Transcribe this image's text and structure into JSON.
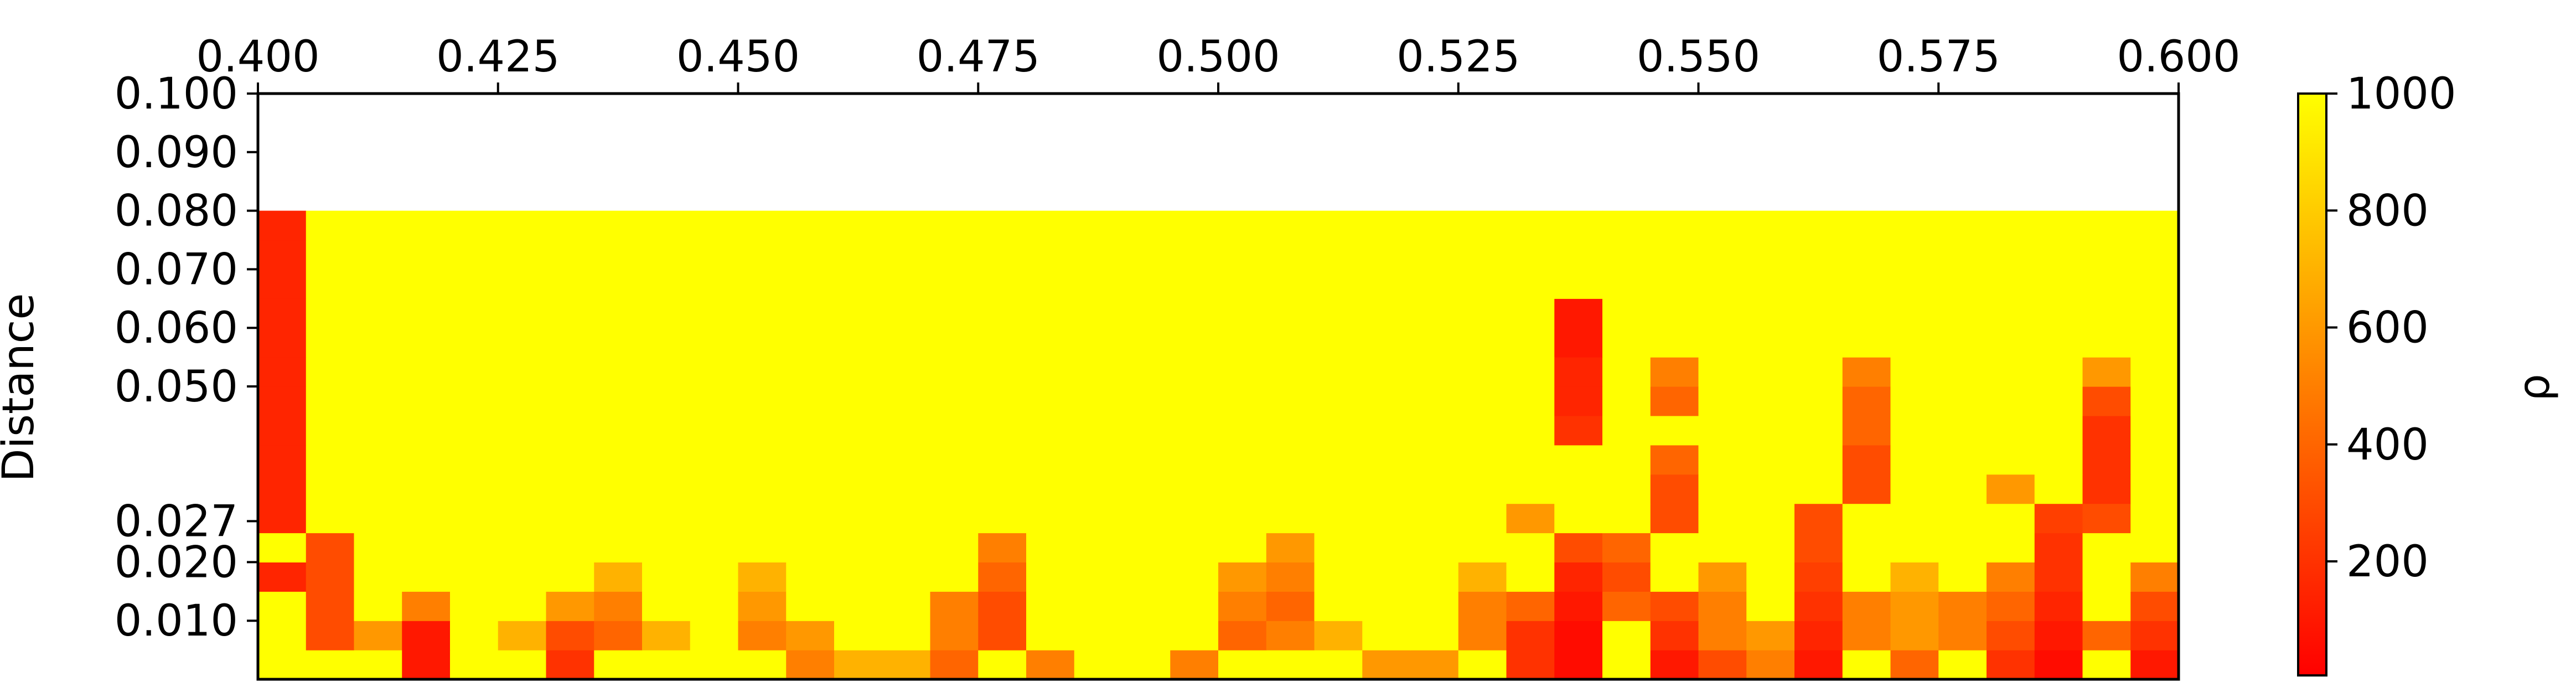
{
  "chart_data": {
    "type": "heatmap",
    "y_label": "Distance",
    "colorbar_label": "ρ",
    "colormap": "autumn",
    "xlim": [
      0.4,
      0.6
    ],
    "ylim": [
      0.0,
      0.1
    ],
    "zlim": [
      5,
      1000
    ],
    "xticks": [
      {
        "value": 0.4,
        "label": "0.400"
      },
      {
        "value": 0.425,
        "label": "0.425"
      },
      {
        "value": 0.45,
        "label": "0.450"
      },
      {
        "value": 0.475,
        "label": "0.475"
      },
      {
        "value": 0.5,
        "label": "0.500"
      },
      {
        "value": 0.525,
        "label": "0.525"
      },
      {
        "value": 0.55,
        "label": "0.550"
      },
      {
        "value": 0.575,
        "label": "0.575"
      },
      {
        "value": 0.6,
        "label": "0.600"
      }
    ],
    "yticks": [
      {
        "value": 0.1,
        "label": "0.100"
      },
      {
        "value": 0.09,
        "label": "0.090"
      },
      {
        "value": 0.08,
        "label": "0.080"
      },
      {
        "value": 0.07,
        "label": "0.070"
      },
      {
        "value": 0.06,
        "label": "0.060"
      },
      {
        "value": 0.05,
        "label": "0.050"
      },
      {
        "value": 0.027,
        "label": "0.027"
      },
      {
        "value": 0.02,
        "label": "0.020"
      },
      {
        "value": 0.01,
        "label": "0.010"
      }
    ],
    "zticks": [
      200,
      400,
      600,
      800,
      1000
    ],
    "xbins": [
      0.4,
      0.405,
      0.41,
      0.415,
      0.42,
      0.425,
      0.43,
      0.435,
      0.44,
      0.445,
      0.45,
      0.455,
      0.46,
      0.465,
      0.47,
      0.475,
      0.48,
      0.485,
      0.49,
      0.495,
      0.5,
      0.505,
      0.51,
      0.515,
      0.52,
      0.525,
      0.53,
      0.535,
      0.54,
      0.545,
      0.55,
      0.555,
      0.56,
      0.565,
      0.57,
      0.575,
      0.58,
      0.585,
      0.59,
      0.595,
      0.6
    ],
    "ybins": [
      0.0,
      0.005,
      0.01,
      0.015,
      0.02,
      0.025,
      0.03,
      0.035,
      0.04,
      0.045,
      0.05,
      0.055,
      0.06,
      0.065,
      0.07,
      0.075,
      0.08
    ],
    "z": [
      [
        1000,
        1000,
        1000,
        100,
        1000,
        1000,
        200,
        1000,
        1000,
        1000,
        1000,
        500,
        700,
        700,
        400,
        1000,
        500,
        1000,
        1000,
        500,
        1000,
        1000,
        1000,
        600,
        600,
        1000,
        200,
        50,
        1000,
        100,
        300,
        500,
        100,
        1000,
        400,
        1000,
        200,
        50,
        1000,
        100
      ],
      [
        1000,
        300,
        600,
        100,
        1000,
        700,
        300,
        400,
        700,
        1000,
        500,
        600,
        1000,
        1000,
        500,
        300,
        1000,
        1000,
        1000,
        1000,
        400,
        500,
        700,
        1000,
        1000,
        500,
        200,
        50,
        1000,
        200,
        500,
        600,
        150,
        500,
        600,
        500,
        300,
        100,
        400,
        200
      ],
      [
        1000,
        300,
        1000,
        500,
        1000,
        1000,
        600,
        500,
        1000,
        1000,
        600,
        1000,
        1000,
        1000,
        500,
        300,
        1000,
        1000,
        1000,
        1000,
        500,
        400,
        1000,
        1000,
        1000,
        500,
        400,
        100,
        400,
        300,
        500,
        1000,
        200,
        500,
        600,
        500,
        400,
        150,
        1000,
        300
      ],
      [
        150,
        300,
        1000,
        1000,
        1000,
        1000,
        1000,
        700,
        1000,
        1000,
        700,
        1000,
        1000,
        1000,
        1000,
        400,
        1000,
        1000,
        1000,
        1000,
        600,
        500,
        1000,
        1000,
        1000,
        700,
        1000,
        150,
        300,
        1000,
        600,
        1000,
        250,
        1000,
        700,
        1000,
        500,
        200,
        1000,
        500
      ],
      [
        1000,
        300,
        1000,
        1000,
        1000,
        1000,
        1000,
        1000,
        1000,
        1000,
        1000,
        1000,
        1000,
        1000,
        1000,
        500,
        1000,
        1000,
        1000,
        1000,
        1000,
        600,
        1000,
        1000,
        1000,
        1000,
        1000,
        300,
        400,
        1000,
        1000,
        1000,
        300,
        1000,
        1000,
        1000,
        1000,
        200,
        1000,
        1000
      ],
      [
        150,
        1000,
        1000,
        1000,
        1000,
        1000,
        1000,
        1000,
        1000,
        1000,
        1000,
        1000,
        1000,
        1000,
        1000,
        1000,
        1000,
        1000,
        1000,
        1000,
        1000,
        1000,
        1000,
        1000,
        1000,
        1000,
        600,
        1000,
        1000,
        300,
        1000,
        1000,
        300,
        1000,
        1000,
        1000,
        1000,
        250,
        300,
        1000
      ],
      [
        150,
        1000,
        1000,
        1000,
        1000,
        1000,
        1000,
        1000,
        1000,
        1000,
        1000,
        1000,
        1000,
        1000,
        1000,
        1000,
        1000,
        1000,
        1000,
        1000,
        1000,
        1000,
        1000,
        1000,
        1000,
        1000,
        1000,
        1000,
        1000,
        300,
        1000,
        1000,
        1000,
        300,
        1000,
        1000,
        600,
        1000,
        200,
        1000
      ],
      [
        150,
        1000,
        1000,
        1000,
        1000,
        1000,
        1000,
        1000,
        1000,
        1000,
        1000,
        1000,
        1000,
        1000,
        1000,
        1000,
        1000,
        1000,
        1000,
        1000,
        1000,
        1000,
        1000,
        1000,
        1000,
        1000,
        1000,
        1000,
        1000,
        400,
        1000,
        1000,
        1000,
        300,
        1000,
        1000,
        1000,
        1000,
        200,
        1000
      ],
      [
        150,
        1000,
        1000,
        1000,
        1000,
        1000,
        1000,
        1000,
        1000,
        1000,
        1000,
        1000,
        1000,
        1000,
        1000,
        1000,
        1000,
        1000,
        1000,
        1000,
        1000,
        1000,
        1000,
        1000,
        1000,
        1000,
        1000,
        200,
        1000,
        1000,
        1000,
        1000,
        1000,
        400,
        1000,
        1000,
        1000,
        1000,
        200,
        1000
      ],
      [
        150,
        1000,
        1000,
        1000,
        1000,
        1000,
        1000,
        1000,
        1000,
        1000,
        1000,
        1000,
        1000,
        1000,
        1000,
        1000,
        1000,
        1000,
        1000,
        1000,
        1000,
        1000,
        1000,
        1000,
        1000,
        1000,
        1000,
        150,
        1000,
        400,
        1000,
        1000,
        1000,
        400,
        1000,
        1000,
        1000,
        1000,
        300,
        1000
      ],
      [
        150,
        1000,
        1000,
        1000,
        1000,
        1000,
        1000,
        1000,
        1000,
        1000,
        1000,
        1000,
        1000,
        1000,
        1000,
        1000,
        1000,
        1000,
        1000,
        1000,
        1000,
        1000,
        1000,
        1000,
        1000,
        1000,
        1000,
        150,
        1000,
        500,
        1000,
        1000,
        1000,
        500,
        1000,
        1000,
        1000,
        1000,
        600,
        1000
      ],
      [
        150,
        1000,
        1000,
        1000,
        1000,
        1000,
        1000,
        1000,
        1000,
        1000,
        1000,
        1000,
        1000,
        1000,
        1000,
        1000,
        1000,
        1000,
        1000,
        1000,
        1000,
        1000,
        1000,
        1000,
        1000,
        1000,
        1000,
        100,
        1000,
        1000,
        1000,
        1000,
        1000,
        1000,
        1000,
        1000,
        1000,
        1000,
        1000,
        1000
      ],
      [
        150,
        1000,
        1000,
        1000,
        1000,
        1000,
        1000,
        1000,
        1000,
        1000,
        1000,
        1000,
        1000,
        1000,
        1000,
        1000,
        1000,
        1000,
        1000,
        1000,
        1000,
        1000,
        1000,
        1000,
        1000,
        1000,
        1000,
        100,
        1000,
        1000,
        1000,
        1000,
        1000,
        1000,
        1000,
        1000,
        1000,
        1000,
        1000,
        1000
      ],
      [
        150,
        1000,
        1000,
        1000,
        1000,
        1000,
        1000,
        1000,
        1000,
        1000,
        1000,
        1000,
        1000,
        1000,
        1000,
        1000,
        1000,
        1000,
        1000,
        1000,
        1000,
        1000,
        1000,
        1000,
        1000,
        1000,
        1000,
        1000,
        1000,
        1000,
        1000,
        1000,
        1000,
        1000,
        1000,
        1000,
        1000,
        1000,
        1000,
        1000
      ],
      [
        150,
        1000,
        1000,
        1000,
        1000,
        1000,
        1000,
        1000,
        1000,
        1000,
        1000,
        1000,
        1000,
        1000,
        1000,
        1000,
        1000,
        1000,
        1000,
        1000,
        1000,
        1000,
        1000,
        1000,
        1000,
        1000,
        1000,
        1000,
        1000,
        1000,
        1000,
        1000,
        1000,
        1000,
        1000,
        1000,
        1000,
        1000,
        1000,
        1000
      ],
      [
        150,
        1000,
        1000,
        1000,
        1000,
        1000,
        1000,
        1000,
        1000,
        1000,
        1000,
        1000,
        1000,
        1000,
        1000,
        1000,
        1000,
        1000,
        1000,
        1000,
        1000,
        1000,
        1000,
        1000,
        1000,
        1000,
        1000,
        1000,
        1000,
        1000,
        1000,
        1000,
        1000,
        1000,
        1000,
        1000,
        1000,
        1000,
        1000,
        1000
      ]
    ]
  }
}
